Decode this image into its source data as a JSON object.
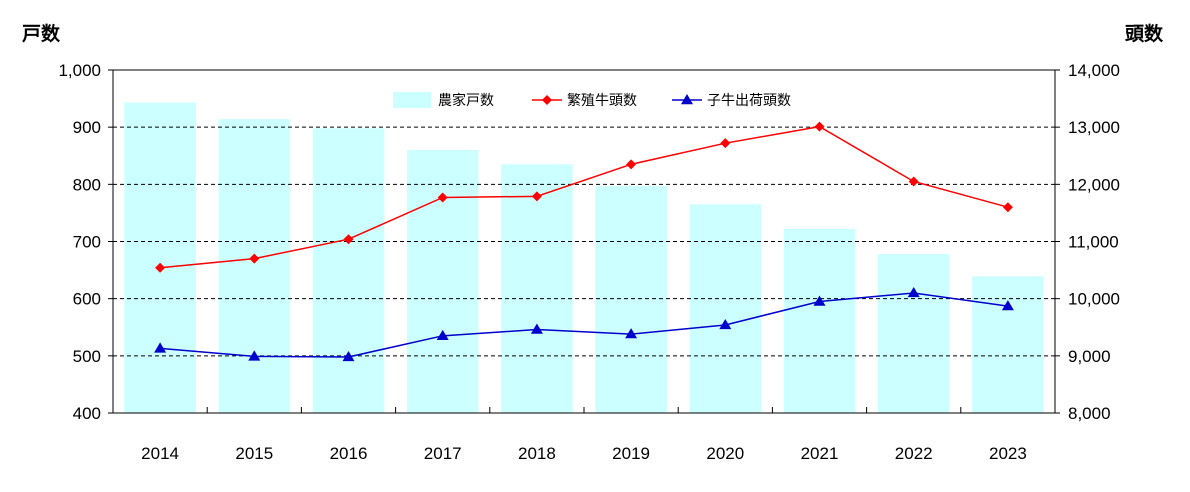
{
  "chart_data": {
    "type": "bar+line",
    "categories": [
      "2014",
      "2015",
      "2016",
      "2017",
      "2018",
      "2019",
      "2020",
      "2021",
      "2022",
      "2023"
    ],
    "left_axis": {
      "label": "戸数",
      "ylim": [
        400,
        1000
      ],
      "ticks": [
        "400",
        "500",
        "600",
        "700",
        "800",
        "900",
        "1,000"
      ]
    },
    "right_axis": {
      "label": "頭数",
      "ylim": [
        8000,
        14000
      ],
      "ticks": [
        "8,000",
        "9,000",
        "10,000",
        "11,000",
        "12,000",
        "13,000",
        "14,000"
      ]
    },
    "series": [
      {
        "name": "農家戸数",
        "type": "bar",
        "axis": "left",
        "color": "#ccffff",
        "values": [
          943,
          914,
          898,
          860,
          835,
          797,
          765,
          722,
          678,
          639
        ]
      },
      {
        "name": "繁殖牛頭数",
        "type": "line",
        "axis": "right",
        "marker": "diamond",
        "color": "#ff0000",
        "values": [
          10540,
          10700,
          11040,
          11770,
          11790,
          12350,
          12720,
          13010,
          12050,
          11600
        ]
      },
      {
        "name": "子牛出荷頭数",
        "type": "line",
        "axis": "right",
        "marker": "triangle",
        "color": "#0000cc",
        "values": [
          9130,
          8990,
          8980,
          9350,
          9460,
          9380,
          9540,
          9950,
          10100,
          9870
        ]
      }
    ],
    "grid": "horizontal-dashed",
    "legend_position": "top-center"
  }
}
